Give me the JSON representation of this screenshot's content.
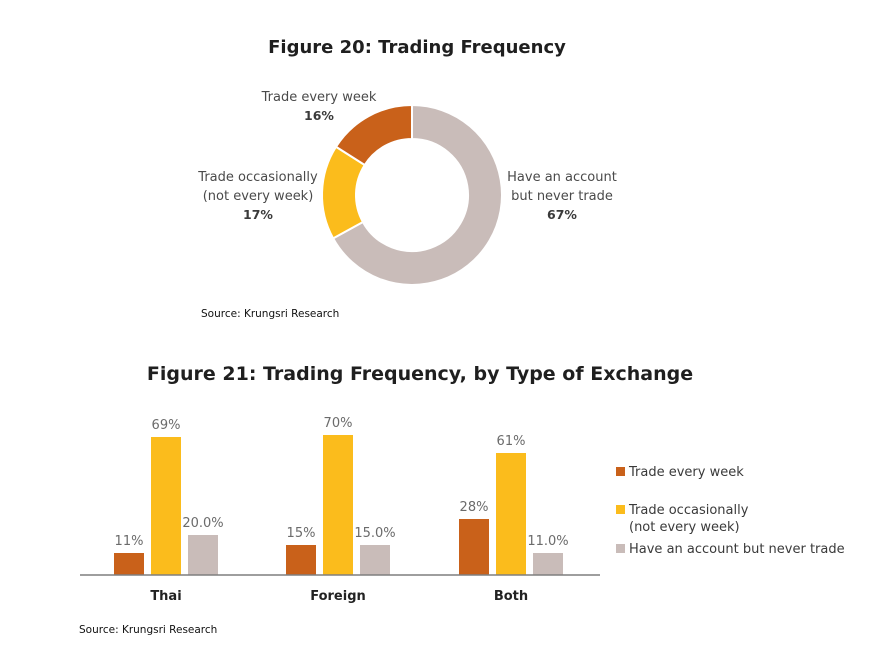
{
  "chart_data": [
    {
      "type": "pie",
      "title": "Figure 20: Trading Frequency",
      "source": "Source: Krungsri Research",
      "slices": [
        {
          "label_lines": [
            "Have an account",
            "but never trade"
          ],
          "pct_label": "67%",
          "value": 67,
          "color": "#c9bcb9"
        },
        {
          "label_lines": [
            "Trade occasionally",
            "(not every week)"
          ],
          "pct_label": "17%",
          "value": 17,
          "color": "#fbbc1c"
        },
        {
          "label_lines": [
            "Trade every week"
          ],
          "pct_label": "16%",
          "value": 16,
          "color": "#c9611a"
        }
      ]
    },
    {
      "type": "bar",
      "title": "Figure 21: Trading Frequency, by Type of Exchange",
      "source": "Source: Krungsri Research",
      "categories": [
        "Thai",
        "Foreign",
        "Both"
      ],
      "series": [
        {
          "name": "Trade every week",
          "color": "#c9611a",
          "values": [
            11,
            15,
            28
          ],
          "labels": [
            "11%",
            "15%",
            "28%"
          ]
        },
        {
          "name_lines": [
            "Trade occasionally",
            "(not every week)"
          ],
          "color": "#fbbc1c",
          "values": [
            69,
            70,
            61
          ],
          "labels": [
            "69%",
            "70%",
            "61%"
          ]
        },
        {
          "name": "Have an account but never trade",
          "color": "#c9bcb9",
          "values": [
            20,
            15,
            11
          ],
          "labels": [
            "20.0%",
            "15.0%",
            "11.0%"
          ]
        }
      ],
      "legend": "right",
      "grid": false
    }
  ]
}
